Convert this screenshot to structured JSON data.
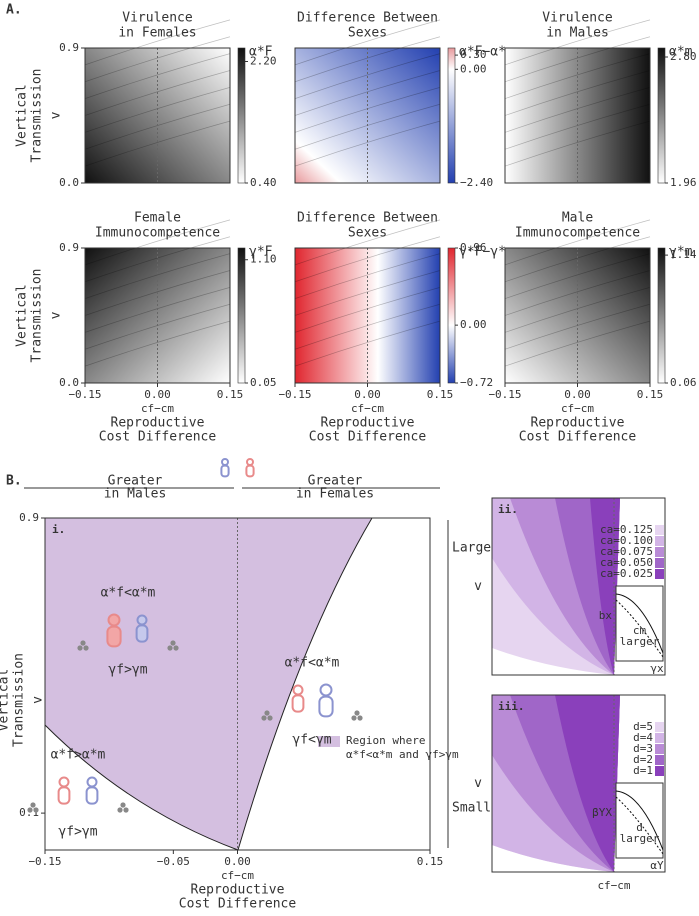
{
  "figure_labels": [
    "A.",
    "B."
  ],
  "chart_data": [
    {
      "type": "contour",
      "title": [
        "Virulence",
        "in Females"
      ],
      "colorbar_label": "α*F",
      "colorbar_ticks": [
        {
          "value": 2.2,
          "label": "2.20"
        },
        {
          "value": 0.4,
          "label": "0.40"
        }
      ],
      "clim": [
        0.4,
        2.4
      ],
      "colormap": [
        "#ffffff",
        "#111111"
      ],
      "xlim": [
        -0.15,
        0.15
      ],
      "ylim": [
        0,
        0.9
      ],
      "yticks": [
        {
          "value": 0,
          "label": "0.0"
        },
        0.9
      ],
      "ylabel": [
        "Vertical",
        "Transmission"
      ],
      "ylabel_symbol": "v"
    },
    {
      "type": "contour",
      "title": [
        "Difference Between",
        "Sexes"
      ],
      "colorbar_label": "α*F−α*m",
      "colorbar_ticks": [
        {
          "value": 0.3,
          "label": "0.30"
        },
        {
          "value": 0,
          "label": "0.00"
        },
        {
          "value": -2.4,
          "label": "−2.40"
        }
      ],
      "clim": [
        -2.4,
        0.45
      ],
      "colormap": [
        "#2340b0",
        "#ffffff",
        "#e8999c"
      ],
      "xlim": [
        -0.15,
        0.15
      ],
      "ylim": [
        0,
        0.9
      ]
    },
    {
      "type": "contour",
      "title": [
        "Virulence",
        "in Males"
      ],
      "colorbar_label": "α*m",
      "colorbar_ticks": [
        {
          "value": 2.8,
          "label": "2.80"
        },
        1.96
      ],
      "clim": [
        1.96,
        2.86
      ],
      "colormap": [
        "#ffffff",
        "#111111"
      ],
      "xlim": [
        -0.15,
        0.15
      ],
      "ylim": [
        0,
        0.9
      ]
    },
    {
      "type": "contour",
      "title": [
        "Female",
        "Immunocompetence"
      ],
      "colorbar_label": "γ*F",
      "colorbar_ticks": [
        {
          "value": 1.1,
          "label": "1.10"
        },
        0.05
      ],
      "clim": [
        0.05,
        1.2
      ],
      "colormap": [
        "#ffffff",
        "#111111"
      ],
      "xlim": [
        -0.15,
        0.15
      ],
      "ylim": [
        0,
        0.9
      ],
      "xticks": [
        {
          "value": -0.15,
          "label": "−0.15"
        },
        {
          "value": 0,
          "label": "0.00"
        },
        0.15
      ],
      "yticks": [
        {
          "value": 0,
          "label": "0.0"
        },
        0.9
      ],
      "ylabel": [
        "Vertical",
        "Transmission"
      ],
      "ylabel_symbol": "v",
      "xlabel": "cf−cm",
      "xlabel_desc": [
        "Reproductive",
        "Cost Difference"
      ]
    },
    {
      "type": "contour",
      "title": [
        "Difference Between",
        "Sexes"
      ],
      "colorbar_label": "γ*F−γ*m",
      "colorbar_ticks": [
        0.96,
        {
          "value": 0,
          "label": "0.00"
        },
        {
          "value": -0.72,
          "label": "−0.72"
        }
      ],
      "clim": [
        -0.72,
        0.96
      ],
      "colormap": [
        "#2340b0",
        "#ffffff",
        "#e0262f"
      ],
      "xlim": [
        -0.15,
        0.15
      ],
      "ylim": [
        0,
        0.9
      ],
      "xticks": [
        {
          "value": -0.15,
          "label": "−0.15"
        },
        {
          "value": 0,
          "label": "0.00"
        },
        0.15
      ],
      "xlabel": "cf−cm",
      "xlabel_desc": [
        "Reproductive",
        "Cost Difference"
      ]
    },
    {
      "type": "contour",
      "title": [
        "Male",
        "Immunocompetence"
      ],
      "colorbar_label": "γ*m",
      "colorbar_ticks": [
        1.14,
        0.06
      ],
      "clim": [
        0.06,
        1.2
      ],
      "colormap": [
        "#ffffff",
        "#111111"
      ],
      "xlim": [
        -0.15,
        0.15
      ],
      "ylim": [
        0,
        0.9
      ],
      "xticks": [
        {
          "value": -0.15,
          "label": "−0.15"
        },
        {
          "value": 0,
          "label": "0.00"
        },
        0.15
      ],
      "xlabel": "cf−cm",
      "xlabel_desc": [
        "Reproductive",
        "Cost Difference"
      ]
    },
    {
      "type": "region",
      "panel_label": "i.",
      "color": "#d4bfe0",
      "xlim": [
        -0.15,
        0.15
      ],
      "ylim": [
        0,
        0.9
      ],
      "xticks": [
        {
          "value": -0.15,
          "label": "−0.15"
        },
        {
          "value": -0.05,
          "label": "−0.05"
        },
        {
          "value": 0,
          "label": "0.00"
        },
        0.15
      ],
      "yticks": [
        0.1,
        0.9
      ],
      "ylabel": [
        "Vertical",
        "Transmission"
      ],
      "ylabel_symbol": "v",
      "xlabel": "cf−cm",
      "xlabel_desc": [
        "Reproductive",
        "Cost Difference"
      ],
      "left_arrow": [
        "Greater",
        "in Males"
      ],
      "right_arrow": [
        "Greater",
        "in Females"
      ],
      "side_top": "Large",
      "side_bottom": "Small",
      "legend_label": [
        "Region where",
        "α*f<α*m and γf>γm"
      ],
      "annotations": [
        [
          "α*f<α*m",
          "γf>γm"
        ],
        [
          "α*f<α*m",
          "γf<γm"
        ],
        [
          "α*f>α*m",
          "γf>γm"
        ]
      ]
    },
    {
      "type": "region",
      "panel_label": "ii.",
      "ylabel": "v",
      "series": [
        {
          "name": "ca=0.125",
          "color": "#e6d5f0"
        },
        {
          "name": "ca=0.100",
          "color": "#d2b4e6"
        },
        {
          "name": "ca=0.075",
          "color": "#b98bd6"
        },
        {
          "name": "ca=0.050",
          "color": "#a066c8"
        },
        {
          "name": "ca=0.025",
          "color": "#8a40bb"
        }
      ],
      "inset_ylabel": "bx",
      "inset_note": [
        "cm",
        "larger"
      ],
      "inset_xlabel": "γx"
    },
    {
      "type": "region",
      "panel_label": "iii.",
      "ylabel": "v",
      "xlabel": "cf−cm",
      "series": [
        {
          "name": "d=5",
          "color": "#e6d5f0"
        },
        {
          "name": "d=4",
          "color": "#d2b4e6"
        },
        {
          "name": "d=3",
          "color": "#b98bd6"
        },
        {
          "name": "d=2",
          "color": "#a066c8"
        },
        {
          "name": "d=1",
          "color": "#8a40bb"
        }
      ],
      "inset_ylabel": "βYX",
      "inset_note": [
        "d",
        "larger"
      ],
      "inset_xlabel": "αY"
    }
  ]
}
